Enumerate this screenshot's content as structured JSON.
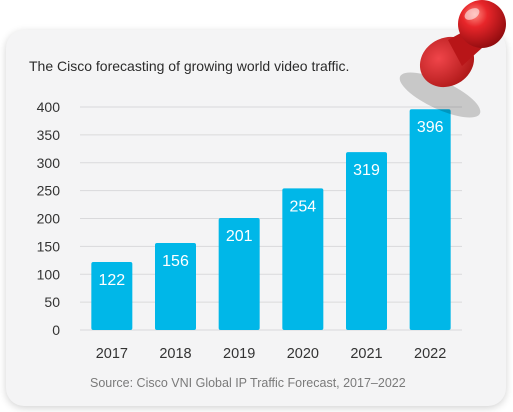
{
  "chart_data": {
    "type": "bar",
    "title": "The Cisco forecasting of growing world video traffic.",
    "categories": [
      "2017",
      "2018",
      "2019",
      "2020",
      "2021",
      "2022"
    ],
    "values": [
      122,
      156,
      201,
      254,
      319,
      396
    ],
    "data_labels": [
      "122",
      "156",
      "201",
      "254",
      "319",
      "396"
    ],
    "ylim": [
      0,
      400
    ],
    "yticks": [
      "0",
      "50",
      "100",
      "150",
      "200",
      "250",
      "300",
      "350",
      "400"
    ],
    "grid": true,
    "bar_color": "#00b7e8",
    "source": "Source: Cisco VNI Global IP Traffic Forecast, 2017–2022"
  },
  "decoration": {
    "pin_color": "#d7191c",
    "pin_icon": "push-pin-icon"
  }
}
